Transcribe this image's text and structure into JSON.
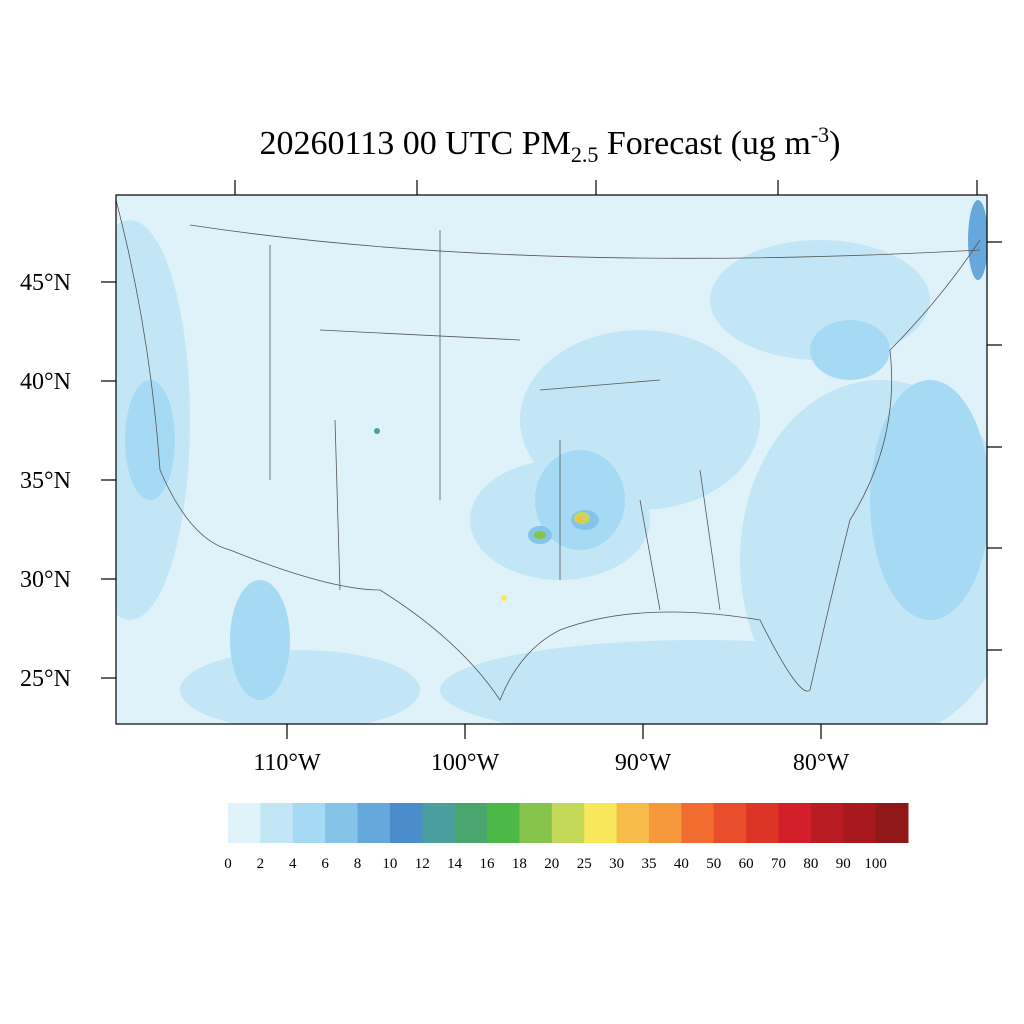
{
  "map": {
    "title": {
      "main": "20260113 00 UTC PM",
      "sub": "2.5",
      "rest": " Forecast (ug m",
      "sup": "-3",
      "end": ")"
    },
    "lat_labels": [
      "45°N",
      "40°N",
      "35°N",
      "30°N",
      "25°N"
    ],
    "lon_labels": [
      "110°W",
      "100°W",
      "90°W",
      "80°W"
    ],
    "colorbar": {
      "levels": [
        0,
        2,
        4,
        6,
        8,
        10,
        12,
        14,
        16,
        18,
        20,
        25,
        30,
        35,
        40,
        50,
        60,
        70,
        80,
        90,
        100
      ],
      "colors": [
        "#e0f3fa",
        "#c3e6f7",
        "#a6daf4",
        "#85c3e8",
        "#66a8db",
        "#4a8ccc",
        "#4a9e9e",
        "#4aa56e",
        "#4cb848",
        "#86c44c",
        "#c4d85a",
        "#f8e75a",
        "#f7bb4a",
        "#f6983c",
        "#f26b2f",
        "#e84e2c",
        "#dc3427",
        "#d21f2a",
        "#ba1c24",
        "#a8191f",
        "#901818"
      ]
    }
  }
}
